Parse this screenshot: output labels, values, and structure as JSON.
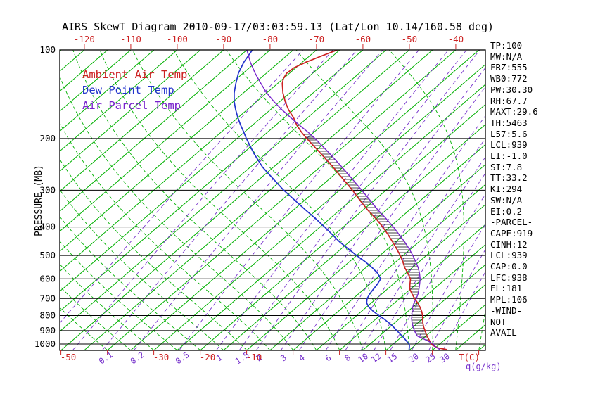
{
  "title": "AIRS SkewT Diagram 2010-09-17/03:03:59.13 (Lat/Lon 10.14/160.58 deg)",
  "legend": {
    "items": [
      {
        "label": "Ambient Air Temp",
        "color": "#cc2222"
      },
      {
        "label": "Dew Point Temp",
        "color": "#2233cc"
      },
      {
        "label": "Air Parcel Temp",
        "color": "#7722cc"
      }
    ]
  },
  "axes": {
    "pressure_label": "PRESSURE (MB)",
    "pressure_ticks": [
      100,
      200,
      300,
      400,
      500,
      600,
      700,
      800,
      900,
      1000
    ],
    "top_temp_ticks": [
      -120,
      -110,
      -100,
      -90,
      -80,
      -70,
      -60,
      -50,
      -40
    ],
    "bottom_temp_ticks": [
      -50,
      -30,
      -20,
      -10
    ],
    "temp_unit_label": "T(C)",
    "mixing_unit_label": "q(g/kg)",
    "mixing_ticks": [
      0.1,
      0.2,
      0.5,
      1,
      1.5,
      2,
      3,
      4,
      6,
      8,
      10,
      12,
      15,
      20,
      25,
      30
    ]
  },
  "stats_panel": {
    "lines": [
      "TP:100",
      "MW:N/A",
      "FRZ:555",
      "WB0:772",
      "PW:30.30",
      "RH:67.7",
      "MAXT:29.6",
      "TH:5463",
      "L57:5.6",
      "LCL:939",
      "LI:-1.0",
      "SI:7.8",
      "TT:33.2",
      "KI:294",
      "SW:N/A",
      "EI:0.2",
      "-PARCEL-",
      "CAPE:919",
      "CINH:12",
      "LCL:939",
      "CAP:0.0",
      "LFC:938",
      "EL:181",
      "MPL:106",
      "-WIND-",
      "NOT",
      "AVAIL"
    ]
  },
  "colors": {
    "isotherm": "#00b000",
    "moist_adiabat": "#00b000",
    "mixing_line": "#7733cc",
    "pressure_line": "#000000",
    "border": "#000000",
    "hatch": "#000000",
    "axis_red": "#cc2222",
    "axis_purple": "#7733cc",
    "text": "#000000"
  },
  "chart_data": {
    "type": "line",
    "subtype": "skewT_logP",
    "title": "AIRS SkewT Diagram 2010-09-17/03:03:59.13 (Lat/Lon 10.14/160.58 deg)",
    "ylabel": "PRESSURE (MB)",
    "xlabel": "T(C)",
    "pressure_axis": {
      "min": 100,
      "max": 1050,
      "scale": "log",
      "gridlines": [
        100,
        200,
        300,
        400,
        500,
        600,
        700,
        800,
        900,
        1000
      ]
    },
    "top_axis_temp_labels": [
      -120,
      -110,
      -100,
      -90,
      -80,
      -70,
      -60,
      -50,
      -40
    ],
    "isotherms": {
      "min": -125,
      "max": 40,
      "step": 5
    },
    "mixing_ratio_gkg_drawn": [
      0.02,
      0.05,
      0.1,
      0.2,
      0.5,
      1,
      1.5,
      2,
      3,
      4,
      6,
      8,
      10,
      12,
      15,
      20,
      25,
      30
    ],
    "mixing_ratio_gkg_labeled": [
      0.1,
      0.2,
      0.5,
      1,
      1.5,
      2,
      3,
      4,
      6,
      8,
      10,
      12,
      15,
      20,
      25,
      30
    ],
    "moist_adiabat_surface_temps": [
      -40,
      -35,
      -30,
      -25,
      -20,
      -15,
      -10,
      -5,
      0,
      5,
      10,
      15,
      20,
      25,
      30,
      35,
      40
    ],
    "series": [
      {
        "name": "Ambient Air Temp",
        "color": "#cc2222",
        "units": [
          "hPa",
          "degC"
        ],
        "points": [
          [
            1045,
            33
          ],
          [
            1030,
            30.5
          ],
          [
            1010,
            28.8
          ],
          [
            1000,
            28.2
          ],
          [
            975,
            27
          ],
          [
            950,
            25.8
          ],
          [
            925,
            24.6
          ],
          [
            900,
            23.5
          ],
          [
            875,
            22.3
          ],
          [
            850,
            21.2
          ],
          [
            820,
            20
          ],
          [
            800,
            19.2
          ],
          [
            775,
            18
          ],
          [
            750,
            16.6
          ],
          [
            725,
            15
          ],
          [
            700,
            13.2
          ],
          [
            675,
            11.5
          ],
          [
            650,
            9.8
          ],
          [
            625,
            8.6
          ],
          [
            600,
            7.4
          ],
          [
            575,
            5.5
          ],
          [
            550,
            3.4
          ],
          [
            525,
            1.5
          ],
          [
            500,
            -0.6
          ],
          [
            475,
            -3
          ],
          [
            450,
            -5.6
          ],
          [
            425,
            -8.4
          ],
          [
            400,
            -11.5
          ],
          [
            375,
            -15
          ],
          [
            350,
            -19
          ],
          [
            325,
            -23
          ],
          [
            300,
            -27.2
          ],
          [
            275,
            -32
          ],
          [
            250,
            -37.2
          ],
          [
            225,
            -43.2
          ],
          [
            200,
            -50
          ],
          [
            190,
            -52.8
          ],
          [
            180,
            -55.5
          ],
          [
            170,
            -58
          ],
          [
            160,
            -61
          ],
          [
            150,
            -63.8
          ],
          [
            140,
            -66.5
          ],
          [
            130,
            -69
          ],
          [
            125,
            -70
          ],
          [
            120,
            -70.6
          ],
          [
            115,
            -70.4
          ],
          [
            110,
            -69.2
          ],
          [
            105,
            -67.5
          ],
          [
            100,
            -65.5
          ]
        ]
      },
      {
        "name": "Dew Point Temp",
        "color": "#2233cc",
        "units": [
          "hPa",
          "degC"
        ],
        "points": [
          [
            1045,
            24.8
          ],
          [
            1030,
            24.4
          ],
          [
            1010,
            23.8
          ],
          [
            1000,
            23.4
          ],
          [
            975,
            22
          ],
          [
            950,
            20.6
          ],
          [
            925,
            19
          ],
          [
            900,
            17.4
          ],
          [
            875,
            15.8
          ],
          [
            850,
            14
          ],
          [
            820,
            11.6
          ],
          [
            800,
            9.8
          ],
          [
            775,
            7.6
          ],
          [
            750,
            5.6
          ],
          [
            725,
            4
          ],
          [
            700,
            3
          ],
          [
            675,
            2.4
          ],
          [
            650,
            2
          ],
          [
            625,
            1.6
          ],
          [
            600,
            1
          ],
          [
            575,
            -1
          ],
          [
            550,
            -3.6
          ],
          [
            525,
            -6.6
          ],
          [
            500,
            -10
          ],
          [
            475,
            -13.4
          ],
          [
            450,
            -17
          ],
          [
            425,
            -20.4
          ],
          [
            400,
            -24
          ],
          [
            375,
            -28
          ],
          [
            350,
            -32.4
          ],
          [
            325,
            -37
          ],
          [
            300,
            -42
          ],
          [
            275,
            -47
          ],
          [
            250,
            -52.4
          ],
          [
            225,
            -57.6
          ],
          [
            200,
            -63
          ],
          [
            190,
            -65.2
          ],
          [
            180,
            -67.6
          ],
          [
            170,
            -70
          ],
          [
            160,
            -72.4
          ],
          [
            150,
            -74.8
          ],
          [
            140,
            -77
          ],
          [
            130,
            -79
          ],
          [
            120,
            -81
          ],
          [
            110,
            -82.6
          ],
          [
            100,
            -83.8
          ]
        ]
      },
      {
        "name": "Air Parcel Temp",
        "color": "#7722cc",
        "units": [
          "hPa",
          "degC"
        ],
        "points": [
          [
            1045,
            31.5
          ],
          [
            1020,
            29.6
          ],
          [
            1000,
            28.6
          ],
          [
            980,
            27
          ],
          [
            960,
            25.2
          ],
          [
            939,
            23.2
          ],
          [
            920,
            22.2
          ],
          [
            900,
            21.2
          ],
          [
            875,
            20
          ],
          [
            850,
            18.9
          ],
          [
            820,
            17.6
          ],
          [
            800,
            16.9
          ],
          [
            775,
            15.9
          ],
          [
            750,
            15
          ],
          [
            725,
            14.2
          ],
          [
            700,
            13.6
          ],
          [
            675,
            12.8
          ],
          [
            650,
            11.8
          ],
          [
            625,
            10.7
          ],
          [
            600,
            9.5
          ],
          [
            575,
            8
          ],
          [
            550,
            6.3
          ],
          [
            525,
            4.3
          ],
          [
            500,
            2.1
          ],
          [
            475,
            -0.3
          ],
          [
            450,
            -3
          ],
          [
            425,
            -6
          ],
          [
            400,
            -9.2
          ],
          [
            375,
            -12.8
          ],
          [
            350,
            -16.8
          ],
          [
            325,
            -20.8
          ],
          [
            300,
            -25.2
          ],
          [
            275,
            -30
          ],
          [
            250,
            -35.3
          ],
          [
            225,
            -41.3
          ],
          [
            200,
            -48.2
          ],
          [
            190,
            -51.4
          ],
          [
            181,
            -54.6
          ],
          [
            170,
            -58.6
          ],
          [
            160,
            -62.4
          ],
          [
            150,
            -66.2
          ],
          [
            140,
            -70
          ],
          [
            130,
            -73.6
          ],
          [
            120,
            -77.4
          ],
          [
            110,
            -81.2
          ],
          [
            100,
            -85
          ]
        ]
      }
    ],
    "hatch_between": {
      "series_a": "Ambient Air Temp",
      "series_b": "Air Parcel Temp",
      "p_from": 1000,
      "p_to": 190
    }
  }
}
